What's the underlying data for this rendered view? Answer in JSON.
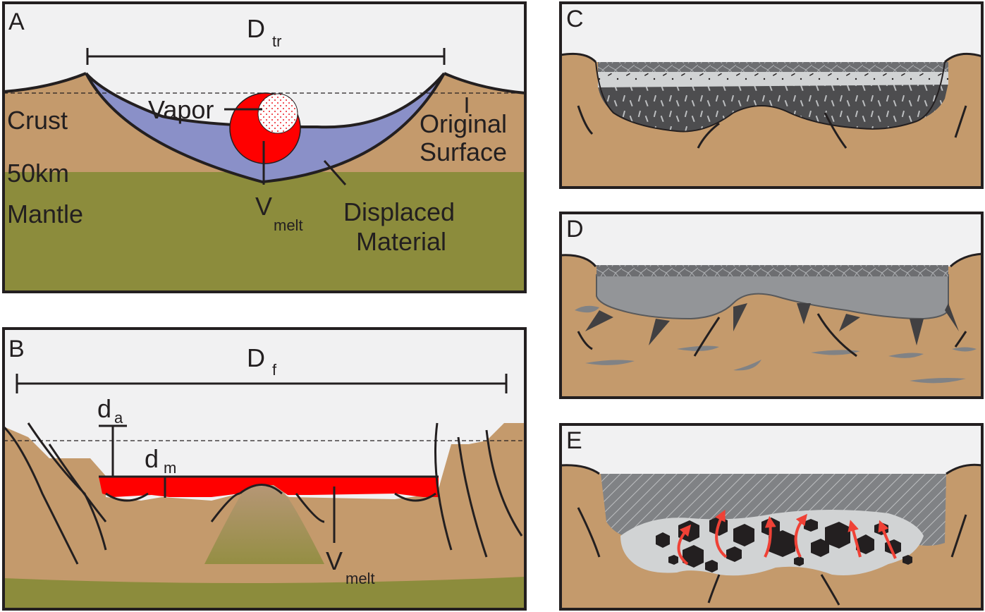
{
  "panels": {
    "a": {
      "letter": "A",
      "dimension_main": "D",
      "dimension_sub": "tr",
      "vapor": "Vapor",
      "crust": "Crust",
      "depth": "50km",
      "mantle": "Mantle",
      "original_surface_line1": "Original",
      "original_surface_line2": "Surface",
      "vmelt_main": "V",
      "vmelt_sub": "melt",
      "displaced_line1": "Displaced",
      "displaced_line2": "Material"
    },
    "b": {
      "letter": "B",
      "dimension_main": "D",
      "dimension_sub": "f",
      "da_main": "d",
      "da_sub": "a",
      "dm_main": "d",
      "dm_sub": "m",
      "vmelt_main": "V",
      "vmelt_sub": "melt"
    },
    "c": {
      "letter": "C"
    },
    "d": {
      "letter": "D"
    },
    "e": {
      "letter": "E"
    }
  },
  "colors": {
    "sky": "#f1f1f2",
    "crust": "#c49a6c",
    "mantle": "#8c8c3c",
    "displaced": "#8a90c8",
    "melt": "#ff0000",
    "dark_fill": "#4d4d4f",
    "light_fill": "#d1d3d4",
    "gray_fill": "#939598",
    "clast": "#231f20",
    "arrow": "#ef4136",
    "outline": "#231f20"
  }
}
